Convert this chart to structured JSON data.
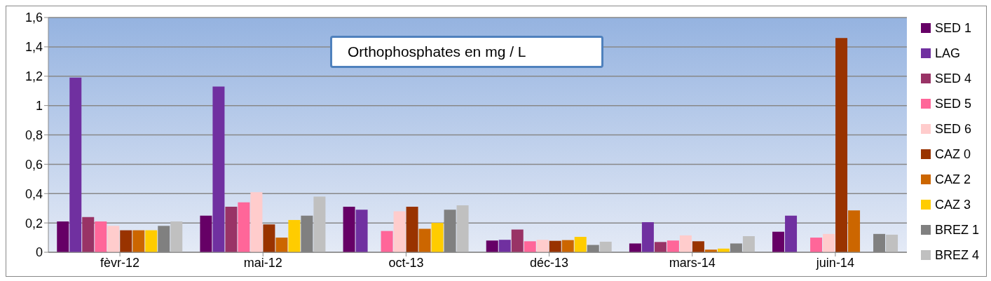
{
  "chart_data": {
    "type": "bar",
    "title": "Orthophosphates en mg / L",
    "categories": [
      "fèvr-12",
      "mai-12",
      "oct-13",
      "déc-13",
      "mars-14",
      "juin-14"
    ],
    "series": [
      {
        "name": "SED 1",
        "color": "#660066",
        "values": [
          0.21,
          0.25,
          0.31,
          0.08,
          0.06,
          0.14
        ]
      },
      {
        "name": "LAG",
        "color": "#7030a0",
        "values": [
          1.19,
          1.13,
          0.29,
          0.085,
          0.205,
          0.25
        ]
      },
      {
        "name": "SED 4",
        "color": "#993366",
        "values": [
          0.24,
          0.31,
          null,
          0.155,
          0.07,
          null
        ]
      },
      {
        "name": "SED 5",
        "color": "#ff6699",
        "values": [
          0.21,
          0.34,
          0.145,
          0.075,
          0.08,
          0.1
        ]
      },
      {
        "name": "SED 6",
        "color": "#ffcccc",
        "values": [
          0.18,
          0.41,
          0.28,
          0.085,
          0.115,
          0.125
        ]
      },
      {
        "name": "CAZ 0",
        "color": "#993300",
        "values": [
          0.15,
          0.19,
          0.31,
          0.078,
          0.075,
          1.46
        ]
      },
      {
        "name": "CAZ 2",
        "color": "#cc6600",
        "values": [
          0.15,
          0.1,
          0.16,
          0.083,
          0.018,
          0.285
        ]
      },
      {
        "name": "CAZ 3",
        "color": "#ffcc00",
        "values": [
          0.15,
          0.22,
          0.2,
          0.105,
          0.025,
          null
        ]
      },
      {
        "name": "BREZ 1",
        "color": "#808080",
        "values": [
          0.18,
          0.25,
          0.29,
          0.05,
          0.06,
          0.125
        ]
      },
      {
        "name": "BREZ 4",
        "color": "#c0c0c0",
        "values": [
          0.21,
          0.38,
          0.32,
          0.072,
          0.11,
          0.12
        ]
      }
    ],
    "ylim": [
      0,
      1.6
    ],
    "yticks": [
      0,
      {
        "value": 0.2,
        "label": "0,2"
      },
      {
        "value": 0.4,
        "label": "0,4"
      },
      {
        "value": 0.6,
        "label": "0,6"
      },
      {
        "value": 0.8,
        "label": "0,8"
      },
      1,
      {
        "value": 1.2,
        "label": "1,2"
      },
      {
        "value": 1.4,
        "label": "1,4"
      },
      {
        "value": 1.6,
        "label": "1,6"
      }
    ],
    "grid": "y",
    "legend": "right"
  }
}
